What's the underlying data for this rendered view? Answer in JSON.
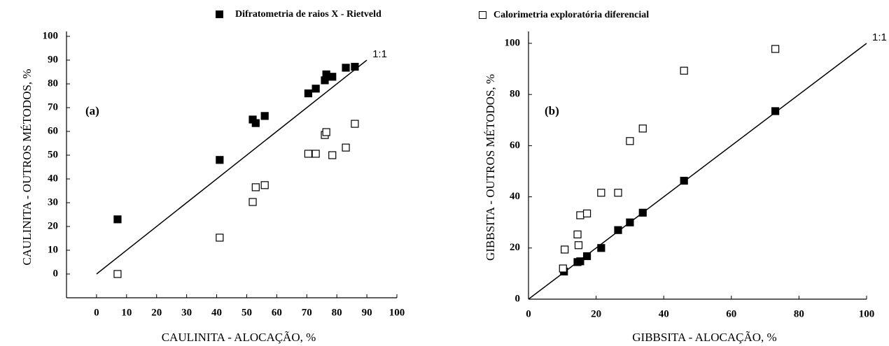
{
  "chart_data": [
    {
      "type": "scatter",
      "x_label": "CAULINITA - ALOCAÇÃO, %",
      "y_label": "CAULINITA - OUTROS MÉTODOS, %",
      "annotation": "(a)",
      "xlim": [
        -10,
        100
      ],
      "ylim": [
        -10,
        100
      ],
      "xticks": [
        0,
        10,
        20,
        30,
        40,
        50,
        60,
        70,
        80,
        90,
        100
      ],
      "yticks": [
        0,
        10,
        20,
        30,
        40,
        50,
        60,
        70,
        80,
        90,
        100
      ],
      "ref_line": {
        "x": [
          0,
          90
        ],
        "y": [
          0,
          90
        ],
        "label": "1:1"
      },
      "series": [
        {
          "name": "Difratometria de raios X - Rietveld",
          "color": "#000000",
          "filled": true,
          "x": [
            7,
            41,
            52,
            53,
            56,
            70.5,
            73,
            76,
            76.5,
            78.5,
            83,
            86
          ],
          "values": [
            23,
            48,
            65,
            63.5,
            66.5,
            76,
            78,
            81.5,
            84,
            83,
            86.8,
            87.2
          ]
        },
        {
          "name": "Calorimetria exploratória diferencial",
          "color": "#000000",
          "filled": false,
          "x": [
            7,
            41,
            52,
            53,
            56,
            70.5,
            73,
            76,
            76.5,
            78.5,
            83,
            86
          ],
          "values": [
            0,
            15.3,
            30.3,
            36.5,
            37.4,
            50.6,
            50.6,
            58.5,
            59.7,
            50,
            53.2,
            63.2
          ]
        }
      ]
    },
    {
      "type": "scatter",
      "x_label": "GIBBSITA - ALOCAÇÃO, %",
      "y_label": "GIBBSITA - OUTROS MÉTODOS, %",
      "annotation": "(b)",
      "xlim": [
        0,
        100
      ],
      "ylim": [
        0,
        103
      ],
      "xticks": [
        0,
        20,
        40,
        60,
        80,
        100
      ],
      "yticks": [
        0,
        20,
        40,
        60,
        80,
        100
      ],
      "ref_line": {
        "x": [
          0,
          100
        ],
        "y": [
          0,
          100
        ],
        "label": "1:1"
      },
      "series": [
        {
          "color": "#000000",
          "filled": true,
          "x": [
            10.5,
            14.5,
            15.3,
            17.3,
            21.5,
            26.5,
            30,
            33.8,
            46,
            73
          ],
          "values": [
            10.8,
            14.5,
            14.8,
            16.8,
            20,
            27,
            30,
            33.8,
            46.3,
            73.5
          ]
        },
        {
          "color": "#000000",
          "filled": false,
          "x": [
            10.2,
            10.7,
            14.5,
            14.8,
            15.3,
            17.3,
            21.5,
            26.5,
            30,
            33.8,
            46,
            73
          ],
          "values": [
            12,
            19.4,
            25.3,
            21.1,
            32.8,
            33.5,
            41.6,
            41.6,
            61.8,
            66.7,
            89.3,
            97.8
          ]
        }
      ]
    }
  ]
}
